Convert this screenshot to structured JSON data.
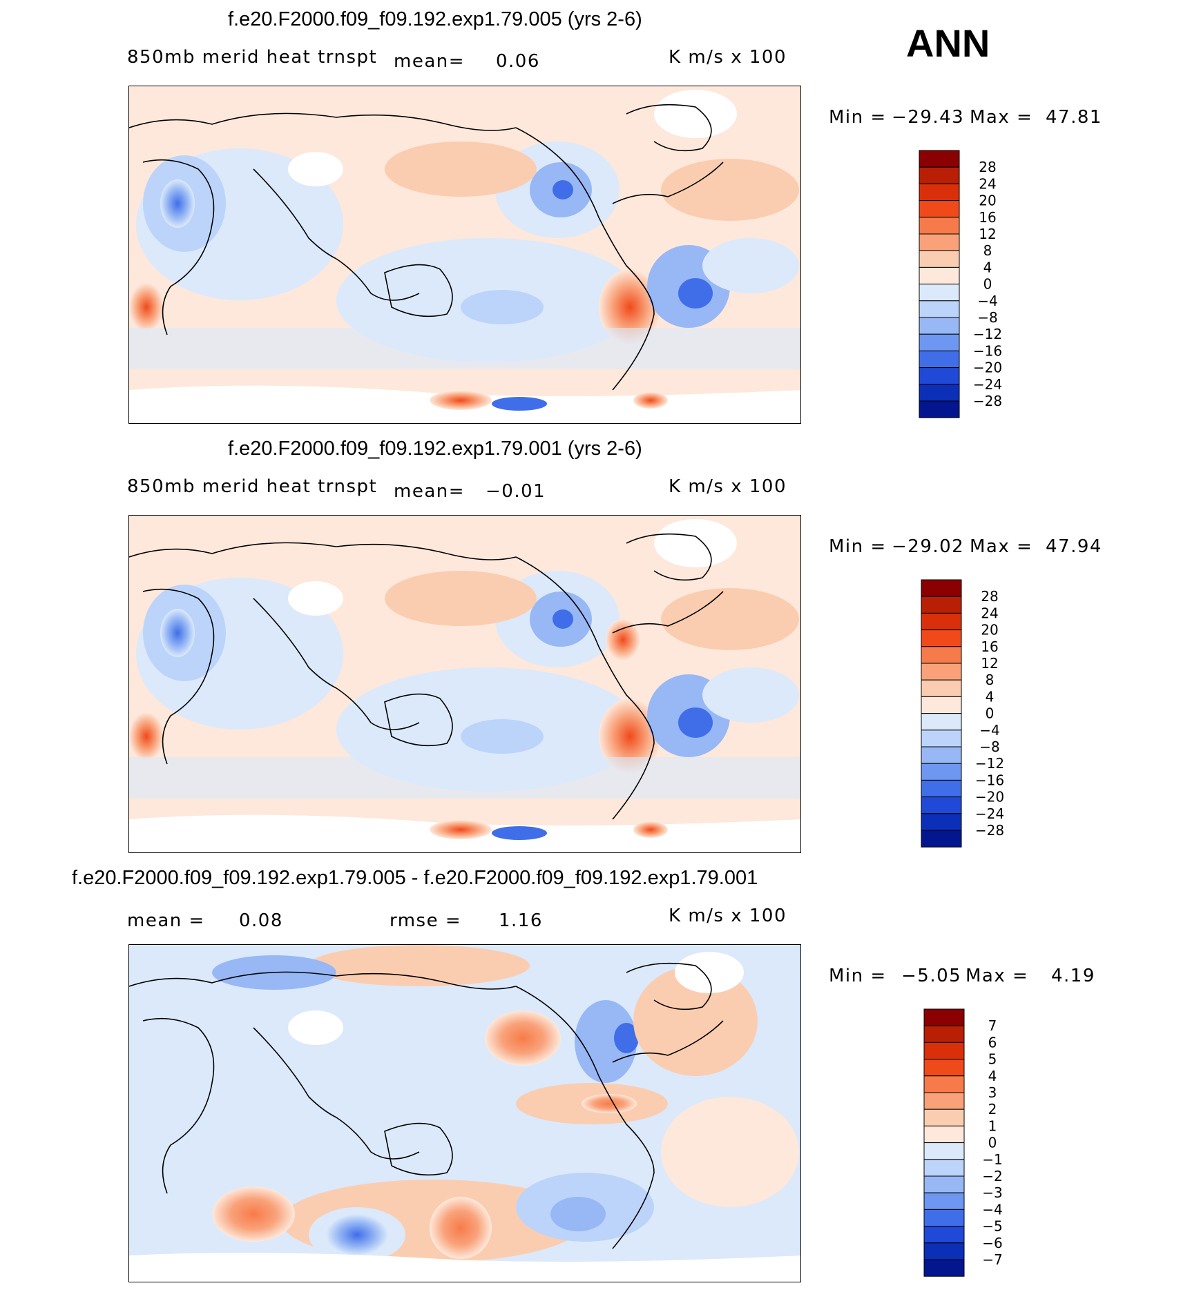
{
  "season": "ANN",
  "chart_data": [
    {
      "type": "heatmap",
      "title": "f.e20.F2000.f09_f09.192.exp1.79.005 (yrs 2-6)",
      "variable": "850mb  merid  heat  trnspt",
      "mean_label": "mean=",
      "mean_value": "0.06",
      "units": "K  m/s  x  100",
      "min_label": "Min  =",
      "min_value": "−29.43",
      "max_label": "Max  =",
      "max_value": "47.81",
      "levels": [
        "28",
        "24",
        "20",
        "16",
        "12",
        "8",
        "4",
        "0",
        "−4",
        "−8",
        "−12",
        "−16",
        "−20",
        "−24",
        "−28"
      ],
      "colors": [
        "#8b0000",
        "#b81f05",
        "#d9300b",
        "#f04a1a",
        "#f77b4a",
        "#f9a27a",
        "#fbcdb0",
        "#fde8db",
        "#dbe9fb",
        "#bcd4f9",
        "#97b8f5",
        "#6d97f0",
        "#3f6ee8",
        "#1f49d6",
        "#0c2fb8",
        "#03168f"
      ]
    },
    {
      "type": "heatmap",
      "title": "f.e20.F2000.f09_f09.192.exp1.79.001 (yrs 2-6)",
      "variable": "850mb  merid  heat  trnspt",
      "mean_label": "mean=",
      "mean_value": "−0.01",
      "units": "K  m/s  x  100",
      "min_label": "Min  =",
      "min_value": "−29.02",
      "max_label": "Max  =",
      "max_value": "47.94",
      "levels": [
        "28",
        "24",
        "20",
        "16",
        "12",
        "8",
        "4",
        "0",
        "−4",
        "−8",
        "−12",
        "−16",
        "−20",
        "−24",
        "−28"
      ],
      "colors": [
        "#8b0000",
        "#b81f05",
        "#d9300b",
        "#f04a1a",
        "#f77b4a",
        "#f9a27a",
        "#fbcdb0",
        "#fde8db",
        "#dbe9fb",
        "#bcd4f9",
        "#97b8f5",
        "#6d97f0",
        "#3f6ee8",
        "#1f49d6",
        "#0c2fb8",
        "#03168f"
      ]
    },
    {
      "type": "heatmap",
      "title": "f.e20.F2000.f09_f09.192.exp1.79.005 - f.e20.F2000.f09_f09.192.exp1.79.001",
      "mean_label": "mean  =",
      "mean_value": "0.08",
      "rmse_label": "rmse  =",
      "rmse_value": "1.16",
      "units": "K  m/s  x  100",
      "min_label": "Min  =",
      "min_value": "−5.05",
      "max_label": "Max  =",
      "max_value": "4.19",
      "levels": [
        "7",
        "6",
        "5",
        "4",
        "3",
        "2",
        "1",
        "0",
        "−1",
        "−2",
        "−3",
        "−4",
        "−5",
        "−6",
        "−7"
      ],
      "colors": [
        "#8b0000",
        "#b81f05",
        "#d9300b",
        "#f04a1a",
        "#f77b4a",
        "#f9a27a",
        "#fbcdb0",
        "#fde8db",
        "#dbe9fb",
        "#bcd4f9",
        "#97b8f5",
        "#6d97f0",
        "#3f6ee8",
        "#1f49d6",
        "#0c2fb8",
        "#03168f"
      ]
    }
  ]
}
